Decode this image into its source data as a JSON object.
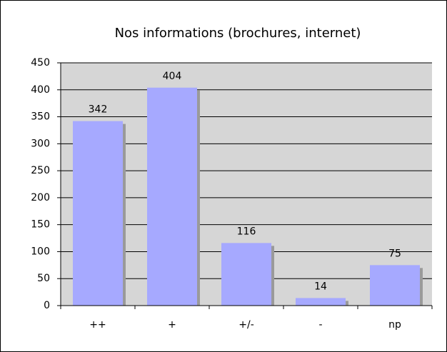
{
  "chart_data": {
    "type": "bar",
    "title": "Nos informations (brochures, internet)",
    "categories": [
      "++",
      "+",
      "+/-",
      "-",
      "np"
    ],
    "values": [
      342,
      404,
      116,
      14,
      75
    ],
    "color": "#a6a9ff",
    "ylim": [
      0,
      450
    ],
    "yticks": [
      0,
      50,
      100,
      150,
      200,
      250,
      300,
      350,
      400,
      450
    ],
    "grid": true,
    "data_labels": true
  }
}
